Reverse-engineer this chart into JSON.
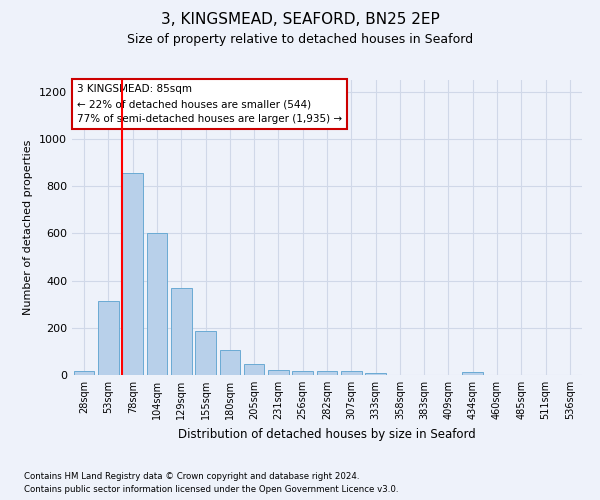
{
  "title": "3, KINGSMEAD, SEAFORD, BN25 2EP",
  "subtitle": "Size of property relative to detached houses in Seaford",
  "xlabel": "Distribution of detached houses by size in Seaford",
  "ylabel": "Number of detached properties",
  "footnote1": "Contains HM Land Registry data © Crown copyright and database right 2024.",
  "footnote2": "Contains public sector information licensed under the Open Government Licence v3.0.",
  "categories": [
    "28sqm",
    "53sqm",
    "78sqm",
    "104sqm",
    "129sqm",
    "155sqm",
    "180sqm",
    "205sqm",
    "231sqm",
    "256sqm",
    "282sqm",
    "307sqm",
    "333sqm",
    "358sqm",
    "383sqm",
    "409sqm",
    "434sqm",
    "460sqm",
    "485sqm",
    "511sqm",
    "536sqm"
  ],
  "values": [
    15,
    315,
    855,
    600,
    370,
    185,
    105,
    47,
    22,
    18,
    18,
    18,
    10,
    0,
    0,
    0,
    12,
    0,
    0,
    0,
    0
  ],
  "bar_color": "#b8d0ea",
  "bar_edge_color": "#6aaad4",
  "grid_color": "#d0d8e8",
  "bg_color": "#eef2fa",
  "red_line_index": 2,
  "annotation_line1": "3 KINGSMEAD: 85sqm",
  "annotation_line2": "← 22% of detached houses are smaller (544)",
  "annotation_line3": "77% of semi-detached houses are larger (1,935) →",
  "annotation_box_color": "#ffffff",
  "annotation_box_edge": "#cc0000",
  "ylim": [
    0,
    1250
  ],
  "yticks": [
    0,
    200,
    400,
    600,
    800,
    1000,
    1200
  ],
  "title_fontsize": 11,
  "subtitle_fontsize": 9
}
